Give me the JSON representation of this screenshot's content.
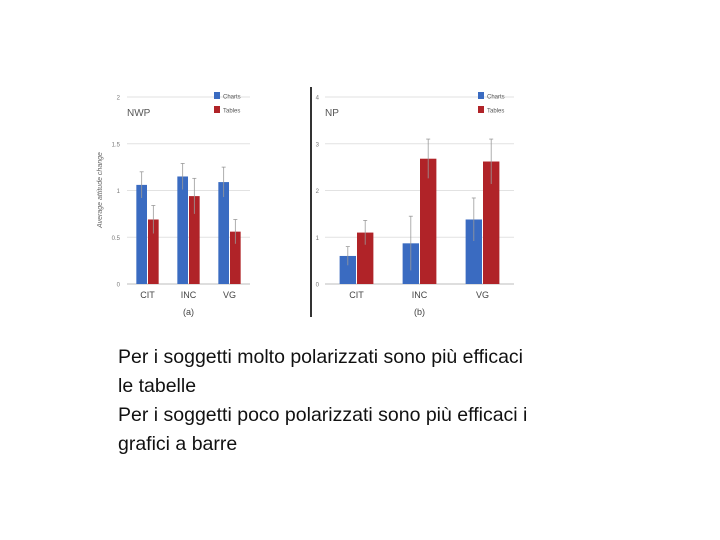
{
  "chart_data": [
    {
      "type": "bar",
      "title": "NWP",
      "panel_label": "(a)",
      "ylabel": "Average attitude change",
      "ylim": [
        0,
        2
      ],
      "yticks": [
        0,
        0.5,
        1,
        1.5,
        2
      ],
      "ytick_labels": [
        "0",
        "0.5",
        "1",
        "1.5",
        "2"
      ],
      "categories": [
        "CIT",
        "INC",
        "VG"
      ],
      "grid": true,
      "legend": "top-right",
      "series": [
        {
          "name": "Charts",
          "color": "#3a6bc1",
          "values": [
            1.06,
            1.15,
            1.09
          ],
          "errors": [
            0.14,
            0.14,
            0.16
          ]
        },
        {
          "name": "Tables",
          "color": "#b02328",
          "values": [
            0.69,
            0.94,
            0.56
          ],
          "errors": [
            0.15,
            0.19,
            0.13
          ]
        }
      ]
    },
    {
      "type": "bar",
      "title": "NP",
      "panel_label": "(b)",
      "ylabel": "",
      "ylim": [
        0,
        4
      ],
      "yticks": [
        0,
        1,
        2,
        3,
        4
      ],
      "ytick_labels": [
        "0",
        "1",
        "2",
        "3",
        "4"
      ],
      "categories": [
        "CIT",
        "INC",
        "VG"
      ],
      "grid": true,
      "legend": "top-right",
      "series": [
        {
          "name": "Charts",
          "color": "#3a6bc1",
          "values": [
            0.6,
            0.87,
            1.38
          ],
          "errors": [
            0.2,
            0.58,
            0.46
          ]
        },
        {
          "name": "Tables",
          "color": "#b02328",
          "values": [
            1.1,
            2.68,
            2.62
          ],
          "errors": [
            0.26,
            0.42,
            0.48
          ]
        }
      ]
    }
  ],
  "caption": {
    "lines": [
      "Per i soggetti molto polarizzati sono più efficaci",
      "le tabelle",
      "Per i soggetti poco polarizzati sono più efficaci i",
      "grafici a barre"
    ]
  }
}
